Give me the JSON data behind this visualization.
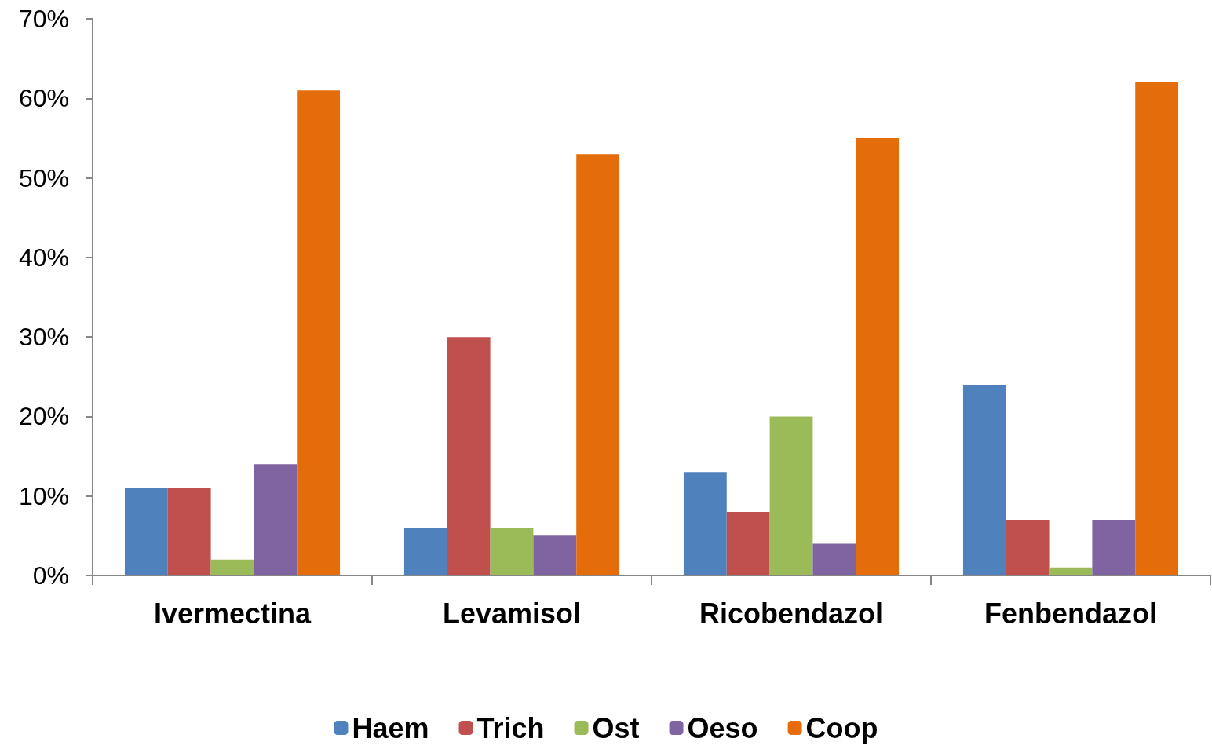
{
  "chart_data": {
    "type": "bar",
    "categories": [
      "Ivermectina",
      "Levamisol",
      "Ricobendazol",
      "Fenbendazol"
    ],
    "series": [
      {
        "name": "Haem",
        "color": "#4f81bd",
        "values": [
          11,
          6,
          13,
          24
        ]
      },
      {
        "name": "Trich",
        "color": "#c0504d",
        "values": [
          11,
          30,
          8,
          7
        ]
      },
      {
        "name": "Ost",
        "color": "#9bbb59",
        "values": [
          2,
          6,
          20,
          1
        ]
      },
      {
        "name": "Oeso",
        "color": "#8064a2",
        "values": [
          14,
          5,
          4,
          7
        ]
      },
      {
        "name": "Coop",
        "color": "#e46c0a",
        "values": [
          61,
          53,
          55,
          62
        ]
      }
    ],
    "ylim": [
      0,
      70
    ],
    "yticks": [
      {
        "value": 0,
        "label": "0%"
      },
      {
        "value": 10,
        "label": "10%"
      },
      {
        "value": 20,
        "label": "20%"
      },
      {
        "value": 30,
        "label": "30%"
      },
      {
        "value": 40,
        "label": "40%"
      },
      {
        "value": 50,
        "label": "50%"
      },
      {
        "value": 60,
        "label": "60%"
      },
      {
        "value": 70,
        "label": "70%"
      }
    ],
    "grid": false,
    "legend": "bottom"
  }
}
